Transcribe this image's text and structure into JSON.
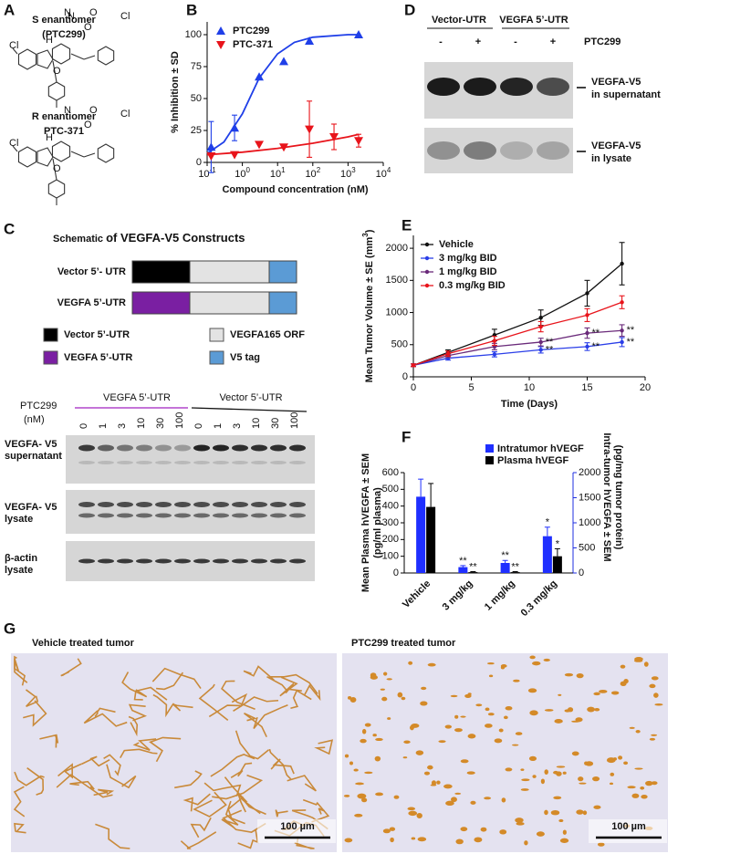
{
  "panels": {
    "A": {
      "label": "A",
      "s_title": "S enantiomer",
      "s_name": "(PTC299)",
      "r_title": "R enantiomer",
      "r_name": "PTC-371",
      "atoms": [
        "Cl",
        "N",
        "H",
        "N",
        "O",
        "O",
        "Cl",
        "O"
      ]
    },
    "C": {
      "label": "C",
      "title_bold": "Schematic",
      "title_rest": "of VEGFA-V5 Constructs",
      "constructs": [
        "Vector 5’- UTR",
        "VEGFA 5’-UTR"
      ],
      "legend": [
        {
          "name": "Vector 5’-UTR",
          "color": "#000000"
        },
        {
          "name": "VEGFA165 ORF",
          "color": "#e3e3e3"
        },
        {
          "name": "VEGFA 5’-UTR",
          "color": "#7a1fa2"
        },
        {
          "name": "V5 tag",
          "color": "#5b9bd5"
        }
      ],
      "treatment": "PTC299",
      "unit": "(nM)",
      "groups": [
        {
          "name": "VEGFA 5’-UTR",
          "color": "#a020c0"
        },
        {
          "name": "Vector 5’-UTR",
          "color": "#111111"
        }
      ],
      "doses": [
        "0",
        "1",
        "3",
        "10",
        "30",
        "100"
      ],
      "blots": [
        [
          "VEGFA- V5",
          "supernatant"
        ],
        [
          "VEGFA- V5",
          "lysate"
        ],
        [
          "β-actin",
          "lysate"
        ]
      ]
    },
    "D": {
      "label": "D",
      "groups": [
        {
          "name": "Vector-UTR",
          "color": "#111111"
        },
        {
          "name": "VEGFA 5’-UTR",
          "color": "#a020c0"
        }
      ],
      "signs": [
        "-",
        "+",
        "-",
        "+"
      ],
      "treatment": "PTC299",
      "bands": [
        [
          "VEGFA-V5",
          "in supernatant"
        ],
        [
          "VEGFA-V5",
          "in lysate"
        ]
      ]
    },
    "G": {
      "label": "G",
      "titles": [
        "Vehicle treated tumor",
        "PTC299 treated tumor"
      ],
      "scale": [
        "100 µm",
        "100 µm"
      ]
    }
  },
  "chart_data": [
    {
      "type": "line",
      "panel": "B",
      "xscale": "log",
      "xlabel": "Compound concentration (nM)",
      "ylabel": "% Inhibition ± SD",
      "xlim": [
        0.1,
        10000
      ],
      "xticks": [
        {
          "value": 0.1,
          "label": "10",
          "sup": "-1"
        },
        {
          "value": 1,
          "label": "10",
          "sup": "0"
        },
        {
          "value": 10,
          "label": "10",
          "sup": "1"
        },
        {
          "value": 100,
          "label": "10",
          "sup": "2"
        },
        {
          "value": 1000,
          "label": "10",
          "sup": "3"
        },
        {
          "value": 10000,
          "label": "10",
          "sup": "4"
        }
      ],
      "ylim": [
        0,
        110
      ],
      "yticks": [
        0,
        25,
        50,
        75,
        100
      ],
      "legend": "upper left",
      "series": [
        {
          "name": "PTC299",
          "color": "#1f3fe8",
          "marker": "triangle-up",
          "x": [
            0.13,
            0.6,
            3,
            15,
            80,
            2000
          ],
          "values": [
            12,
            27,
            67,
            79,
            95,
            100
          ],
          "errors": [
            20,
            10,
            null,
            null,
            null,
            null
          ],
          "fit_x": [
            0.1,
            0.3,
            1,
            3,
            10,
            30,
            100,
            1000,
            2000
          ],
          "fit": [
            7,
            16,
            38,
            66,
            85,
            94,
            98,
            100,
            100
          ]
        },
        {
          "name": "PTC-371",
          "color": "#e8141b",
          "marker": "triangle-down",
          "x": [
            0.13,
            0.6,
            3,
            15,
            80,
            400,
            2000
          ],
          "values": [
            5,
            6,
            14,
            12,
            26,
            20,
            17
          ],
          "errors": [
            null,
            null,
            null,
            null,
            22,
            10,
            5
          ],
          "fit_x": [
            0.1,
            1,
            10,
            100,
            1000,
            2000
          ],
          "fit": [
            6,
            8,
            11,
            15,
            20,
            22
          ]
        }
      ]
    },
    {
      "type": "line",
      "panel": "E",
      "xlabel": "Time (Days)",
      "ylabel": [
        "Mean Tumor  Volume ± SE  (mm",
        "3",
        ")"
      ],
      "xlim": [
        0,
        20
      ],
      "xticks": [
        0,
        5,
        10,
        15,
        20
      ],
      "ylim": [
        0,
        2200
      ],
      "yticks": [
        0,
        500,
        1000,
        1500,
        2000
      ],
      "legend": "upper left",
      "series": [
        {
          "name": "Vehicle",
          "color": "#111111",
          "marker": "circle",
          "x": [
            0,
            3,
            7,
            11,
            15,
            18
          ],
          "values": [
            180,
            380,
            650,
            920,
            1300,
            1760
          ],
          "errors": [
            20,
            40,
            90,
            120,
            200,
            330
          ]
        },
        {
          "name": "3 mg/kg BID",
          "color": "#2a3ee8",
          "marker": "circle",
          "x": [
            0,
            3,
            7,
            11,
            15,
            18
          ],
          "values": [
            180,
            290,
            350,
            420,
            470,
            540
          ],
          "errors": [
            20,
            30,
            40,
            50,
            60,
            70
          ],
          "significance": [
            null,
            null,
            null,
            "**",
            "**",
            "**"
          ]
        },
        {
          "name": "1 mg/kg BID",
          "color": "#6a2a7a",
          "marker": "circle",
          "x": [
            0,
            3,
            7,
            11,
            15,
            18
          ],
          "values": [
            180,
            330,
            470,
            540,
            680,
            720
          ],
          "errors": [
            20,
            30,
            50,
            60,
            80,
            90
          ],
          "significance": [
            null,
            null,
            null,
            "**",
            "**",
            "**"
          ]
        },
        {
          "name": "0.3 mg/kg BID",
          "color": "#e8141b",
          "marker": "circle",
          "x": [
            0,
            3,
            7,
            11,
            15,
            18
          ],
          "values": [
            180,
            360,
            560,
            780,
            960,
            1160
          ],
          "errors": [
            20,
            40,
            70,
            80,
            100,
            100
          ]
        }
      ]
    },
    {
      "type": "bar",
      "panel": "F",
      "categories": [
        "Vehicle",
        "3 mg/kg",
        "1 mg/kg",
        "0.3 mg/kg"
      ],
      "ylabel": [
        "Mean Plasma hVEGFA ± SEM",
        "(pg/ml plasma)"
      ],
      "y2label": [
        "Intra-tumor hVEGFA ± SEM",
        "(pg/mg tumor protein)"
      ],
      "ylim": [
        0,
        600
      ],
      "yticks": [
        0,
        100,
        200,
        300,
        400,
        500,
        600
      ],
      "y2lim": [
        0,
        2000
      ],
      "y2ticks": [
        0,
        500,
        1000,
        1500,
        2000
      ],
      "y2color": "#1f2fe0",
      "series": [
        {
          "name": "Intratumor hVEGF",
          "color": "#1f2fff",
          "axis": "y2",
          "values": [
            1520,
            117,
            200,
            733
          ],
          "errors": [
            350,
            30,
            50,
            180
          ],
          "significance": [
            null,
            "**",
            "**",
            "*"
          ]
        },
        {
          "name": "Plasma hVEGF",
          "color": "#000000",
          "values": [
            395,
            5,
            5,
            100
          ],
          "errors": [
            140,
            3,
            3,
            45
          ],
          "significance": [
            null,
            "**",
            "**",
            "*"
          ]
        }
      ]
    }
  ]
}
